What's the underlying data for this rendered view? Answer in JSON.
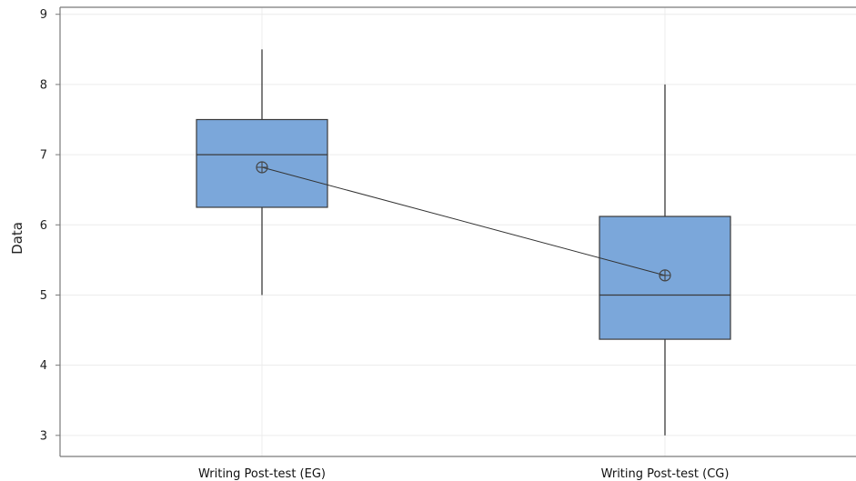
{
  "chart_data": {
    "type": "boxplot",
    "ylabel": "Data",
    "ylim": [
      2.7,
      9.1
    ],
    "y_ticks": [
      "3",
      "4",
      "5",
      "6",
      "7",
      "8",
      "9"
    ],
    "grid": true,
    "categories": [
      "Writing Post-test (EG)",
      "Writing Post-test (CG)"
    ],
    "boxes": [
      {
        "min": 5.0,
        "q1": 6.25,
        "median": 7.0,
        "q3": 7.5,
        "max": 8.5,
        "mean": 6.82
      },
      {
        "min": 3.0,
        "q1": 4.37,
        "median": 5.0,
        "q3": 6.12,
        "max": 8.0,
        "mean": 5.28
      }
    ],
    "mean_connect_line": true,
    "colors": {
      "box_fill": "#7ba7da",
      "box_stroke": "#3a3a3a",
      "whisker": "#3a3a3a",
      "grid": "#ececec",
      "frame": "#7a7a7a"
    }
  }
}
